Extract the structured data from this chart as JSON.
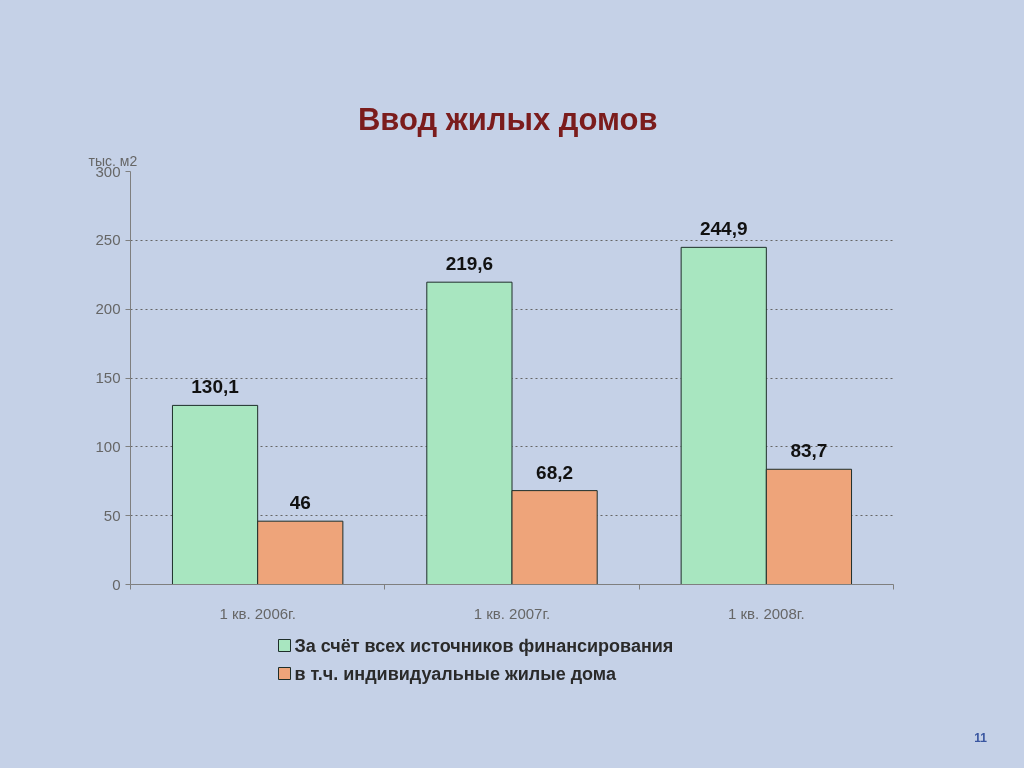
{
  "chart_data": {
    "type": "bar",
    "title": "Ввод  жилых домов",
    "ylabel": "тыс. м2",
    "categories": [
      "1 кв. 2006г.",
      "1 кв. 2007г.",
      "1 кв. 2008г."
    ],
    "series": [
      {
        "name": "За счёт всех источников финансирования",
        "color": "#a8e6c0",
        "values": [
          130.1,
          219.6,
          244.9
        ],
        "value_labels": [
          "130,1",
          "219,6",
          "244,9"
        ]
      },
      {
        "name": "в т.ч. индивидуальные жилые дома",
        "color": "#eea47a",
        "values": [
          46,
          68.2,
          83.7
        ],
        "value_labels": [
          "46",
          "68,2",
          "83,7"
        ]
      }
    ],
    "ylim": [
      0,
      300
    ],
    "yticks": [
      0,
      50,
      100,
      150,
      200,
      250,
      300
    ],
    "grid": "y",
    "legend": "bottom",
    "annotations": [
      "11"
    ]
  }
}
